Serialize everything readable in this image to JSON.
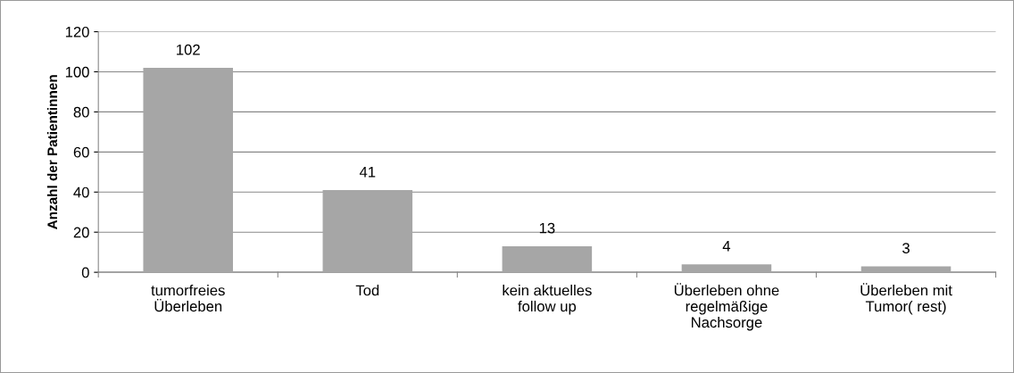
{
  "chart_data": {
    "type": "bar",
    "ylabel": "Anzahl der Patientinnen",
    "categories": [
      "tumorfreies\nÜberleben",
      "Tod",
      "kein aktuelles\nfollow up",
      "Überleben ohne\nregelmäßige\nNachsorge",
      "Überleben mit\nTumor( rest)"
    ],
    "values": [
      102,
      41,
      13,
      4,
      3
    ],
    "color": "#a6a6a6",
    "ylim": [
      0,
      120
    ],
    "yticks": [
      0,
      20,
      40,
      60,
      80,
      100,
      120
    ],
    "grid": "y",
    "data_labels": true,
    "legend": false
  }
}
